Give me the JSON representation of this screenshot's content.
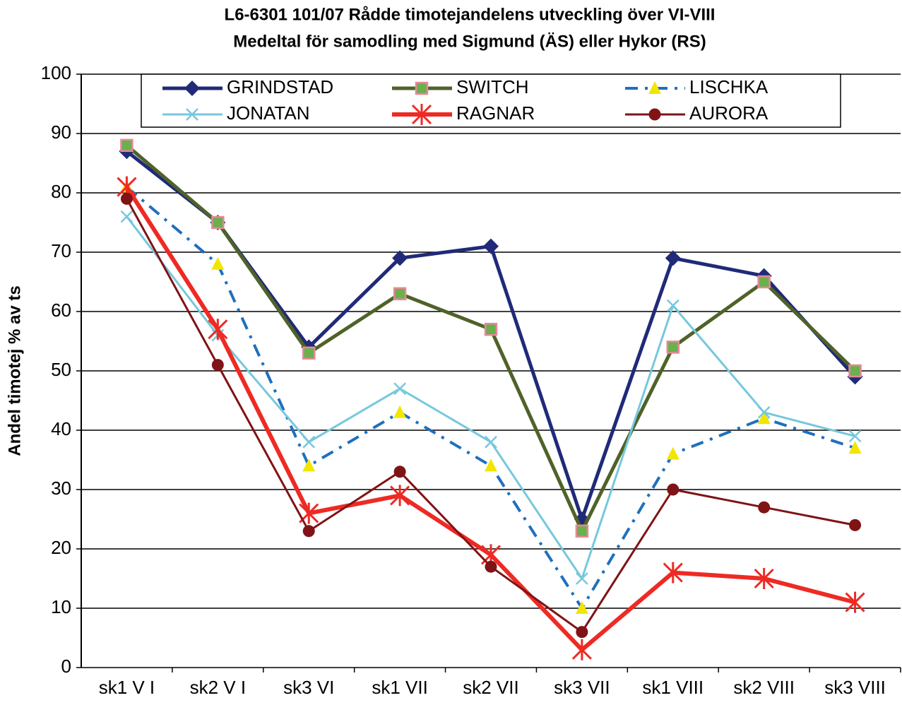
{
  "chart_data": {
    "type": "line",
    "title": "L6-6301 101/07 Rådde timotejandelens utveckling över VI-VIII",
    "subtitle": "Medeltal för samodling med Sigmund (ÄS) eller Hykor (RS)",
    "y_label": "Andel timotej % av ts",
    "categories": [
      "sk1 V I",
      "sk2 V I",
      "sk3 VI",
      "sk1 VII",
      "sk2 VII",
      "sk3 VII",
      "sk1 VIII",
      "sk2 VIII",
      "sk3 VIII"
    ],
    "ylim": [
      0,
      100
    ],
    "yticks": [
      0,
      10,
      20,
      30,
      40,
      50,
      60,
      70,
      80,
      90,
      100
    ],
    "grid": true,
    "legend": "top",
    "series": [
      {
        "name": "GRINDSTAD",
        "color": "#202a78",
        "marker": "diamond",
        "marker_color": "#202a78",
        "line_width": 5,
        "dash": "solid",
        "values": [
          87,
          75,
          54,
          69,
          71,
          25,
          69,
          66,
          49
        ]
      },
      {
        "name": "SWITCH",
        "color": "#4f6228",
        "marker": "square",
        "marker_color": "#6ab04c",
        "line_width": 5,
        "dash": "solid",
        "values": [
          88,
          75,
          53,
          63,
          57,
          23,
          54,
          65,
          50
        ]
      },
      {
        "name": "LISCHKA",
        "color": "#1f6fbf",
        "marker": "triangle",
        "marker_color": "#f2e600",
        "line_width": 4,
        "dash": "dashdot",
        "values": [
          81,
          68,
          34,
          43,
          34,
          10,
          36,
          42,
          37
        ]
      },
      {
        "name": "JONATAN",
        "color": "#76c8dc",
        "marker": "x",
        "marker_color": "#76c8dc",
        "line_width": 3,
        "dash": "solid",
        "values": [
          76,
          56,
          38,
          47,
          38,
          15,
          61,
          43,
          39
        ]
      },
      {
        "name": "RAGNAR",
        "color": "#ee2a24",
        "marker": "star",
        "marker_color": "#ee2a24",
        "line_width": 6,
        "dash": "solid",
        "values": [
          81,
          57,
          26,
          29,
          19,
          3,
          16,
          15,
          11
        ]
      },
      {
        "name": "AURORA",
        "color": "#7f1316",
        "marker": "circle",
        "marker_color": "#7f1316",
        "line_width": 3,
        "dash": "solid",
        "values": [
          79,
          51,
          23,
          33,
          17,
          6,
          30,
          27,
          24
        ]
      }
    ]
  }
}
